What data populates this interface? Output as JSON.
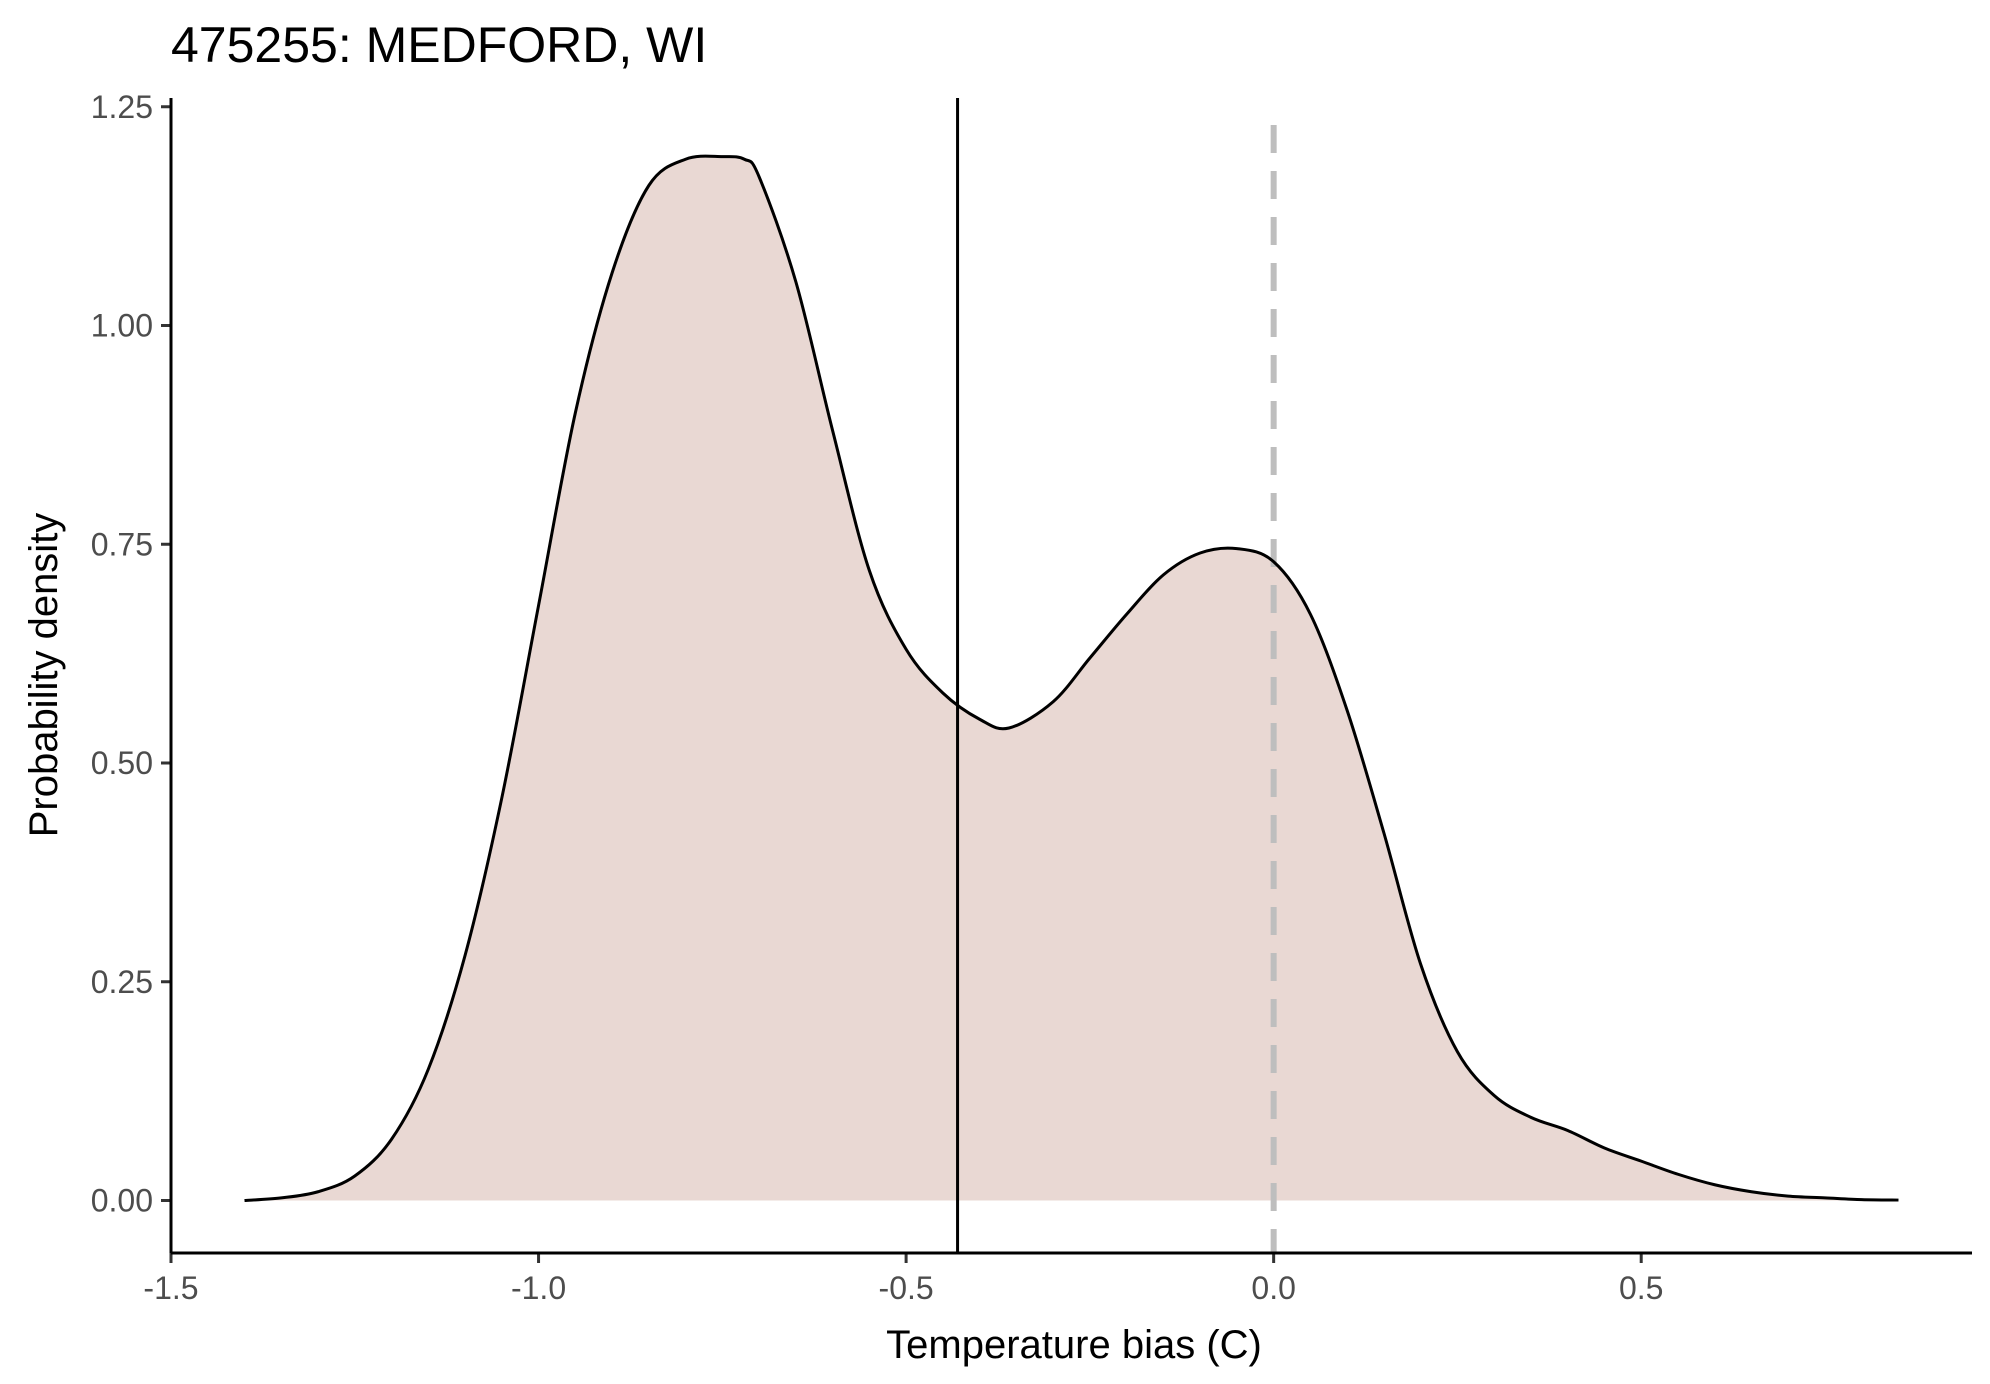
{
  "chart_data": {
    "type": "area",
    "title": "475255: MEDFORD, WI",
    "xlabel": "Temperature bias (C)",
    "ylabel": "Probability density",
    "xlim": [
      -1.5,
      0.95
    ],
    "ylim": [
      -0.06,
      1.26
    ],
    "x_ticks": [
      -1.5,
      -1.0,
      -0.5,
      0.0,
      0.5
    ],
    "x_tick_labels": [
      "-1.5",
      "-1.0",
      "-0.5",
      "0.0",
      "0.5"
    ],
    "y_ticks": [
      0,
      0.25,
      0.5,
      0.75,
      1.0,
      1.25
    ],
    "y_tick_labels": [
      "0.00",
      "0.25",
      "0.50",
      "0.75",
      "1.00",
      "1.25"
    ],
    "grid": false,
    "fill_color": "#e9d8d3",
    "line_color": "#000000",
    "reference_line_color": "#bebebe",
    "series": [
      {
        "x": [
          -1.4,
          -1.35,
          -1.3,
          -1.25,
          -1.2,
          -1.15,
          -1.1,
          -1.05,
          -1.0,
          -0.95,
          -0.9,
          -0.85,
          -0.8,
          -0.75,
          -0.72,
          -0.7,
          -0.65,
          -0.6,
          -0.55,
          -0.5,
          -0.45,
          -0.4,
          -0.36,
          -0.3,
          -0.25,
          -0.2,
          -0.15,
          -0.1,
          -0.05,
          0.0,
          0.05,
          0.1,
          0.15,
          0.2,
          0.25,
          0.3,
          0.35,
          0.4,
          0.45,
          0.5,
          0.55,
          0.6,
          0.65,
          0.7,
          0.75,
          0.8,
          0.85
        ],
        "y": [
          0.0,
          0.003,
          0.01,
          0.028,
          0.07,
          0.15,
          0.28,
          0.46,
          0.68,
          0.9,
          1.06,
          1.16,
          1.19,
          1.193,
          1.19,
          1.17,
          1.05,
          0.88,
          0.72,
          0.63,
          0.58,
          0.55,
          0.54,
          0.57,
          0.62,
          0.67,
          0.715,
          0.74,
          0.745,
          0.73,
          0.67,
          0.56,
          0.42,
          0.27,
          0.17,
          0.12,
          0.095,
          0.08,
          0.06,
          0.045,
          0.03,
          0.018,
          0.01,
          0.005,
          0.003,
          0.001,
          0.0005
        ]
      }
    ],
    "vlines": [
      {
        "x": -0.43,
        "style": "solid",
        "color": "#000000"
      },
      {
        "x": 0.0,
        "style": "dashed",
        "color": "#bebebe"
      }
    ]
  }
}
